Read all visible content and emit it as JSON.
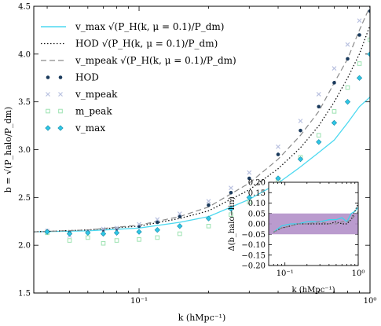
{
  "chart_data": [
    {
      "type": "line",
      "xlabel": "k (hMpc⁻¹)",
      "ylabel": "b = √(P_halo/P_dm)",
      "xscale": "log",
      "xlim": [
        0.035,
        1.0
      ],
      "ylim": [
        1.5,
        4.5
      ],
      "yticks": [
        "1.5",
        "2.0",
        "2.5",
        "3.0",
        "3.5",
        "4.0",
        "4.5"
      ],
      "xticks": [
        {
          "v": 0.1,
          "label": "10⁻¹"
        },
        {
          "v": 1.0,
          "label": "10⁰"
        }
      ],
      "legend": {
        "placement": "top-left",
        "entries": [
          {
            "label": "v_max √(P_H(k, μ = 0.1)/P_dm)",
            "style": "solid",
            "color": "#4dd9f0"
          },
          {
            "label": "HOD √(P_H(k, μ = 0.1)/P_dm)",
            "style": "dotted",
            "color": "#111111"
          },
          {
            "label": "v_mpeak √(P_H(k, μ = 0.1)/P_dm)",
            "style": "dashed",
            "color": "#8a8a8a"
          },
          {
            "label": "HOD",
            "style": "dot",
            "color": "#1a3a5c"
          },
          {
            "label": "v_mpeak",
            "style": "x",
            "color": "#b9c1e0"
          },
          {
            "label": "m_peak",
            "style": "square",
            "color": "#9be2b0"
          },
          {
            "label": "v_max",
            "style": "diamond",
            "color": "#2ec7e6"
          }
        ]
      },
      "series": [
        {
          "name": "v_max √(P_H(k, μ = 0.1)/P_dm)",
          "color": "#4dd9f0",
          "x": [
            0.035,
            0.06,
            0.1,
            0.15,
            0.2,
            0.3,
            0.4,
            0.5,
            0.6,
            0.7,
            0.8,
            0.9,
            1.0
          ],
          "y": [
            2.14,
            2.15,
            2.18,
            2.24,
            2.3,
            2.48,
            2.65,
            2.82,
            2.97,
            3.1,
            3.28,
            3.45,
            3.55
          ]
        },
        {
          "name": "HOD √(P_H(k, μ = 0.1)/P_dm)",
          "color": "#111111",
          "x": [
            0.035,
            0.06,
            0.1,
            0.15,
            0.2,
            0.3,
            0.4,
            0.5,
            0.6,
            0.7,
            0.8,
            0.9,
            1.0
          ],
          "y": [
            2.14,
            2.16,
            2.2,
            2.28,
            2.36,
            2.58,
            2.8,
            3.02,
            3.25,
            3.5,
            3.75,
            4.0,
            4.3
          ]
        },
        {
          "name": "v_mpeak √(P_H(k, μ = 0.1)/P_dm)",
          "color": "#8a8a8a",
          "x": [
            0.035,
            0.06,
            0.1,
            0.15,
            0.2,
            0.3,
            0.4,
            0.5,
            0.6,
            0.7,
            0.8,
            0.9,
            1.0
          ],
          "y": [
            2.14,
            2.16,
            2.21,
            2.3,
            2.4,
            2.65,
            2.9,
            3.15,
            3.4,
            3.7,
            3.95,
            4.25,
            4.5
          ]
        },
        {
          "name": "HOD",
          "color": "#1a3a5c",
          "x": [
            0.04,
            0.05,
            0.06,
            0.07,
            0.08,
            0.1,
            0.12,
            0.15,
            0.2,
            0.25,
            0.3,
            0.4,
            0.5,
            0.6,
            0.7,
            0.8,
            0.9,
            1.0
          ],
          "y": [
            2.15,
            2.13,
            2.14,
            2.16,
            2.17,
            2.2,
            2.24,
            2.3,
            2.42,
            2.55,
            2.7,
            2.95,
            3.2,
            3.45,
            3.7,
            3.95,
            4.2,
            4.45
          ]
        },
        {
          "name": "v_mpeak",
          "color": "#b9c1e0",
          "x": [
            0.04,
            0.05,
            0.06,
            0.07,
            0.08,
            0.1,
            0.12,
            0.15,
            0.2,
            0.25,
            0.3,
            0.4,
            0.5,
            0.6,
            0.7,
            0.8,
            0.9,
            1.0
          ],
          "y": [
            2.15,
            2.1,
            2.14,
            2.17,
            2.18,
            2.22,
            2.27,
            2.33,
            2.46,
            2.6,
            2.76,
            3.03,
            3.3,
            3.58,
            3.85,
            4.1,
            4.35,
            4.55
          ]
        },
        {
          "name": "m_peak",
          "color": "#9be2b0",
          "x": [
            0.04,
            0.05,
            0.06,
            0.07,
            0.08,
            0.1,
            0.12,
            0.15,
            0.2,
            0.25,
            0.3,
            0.4,
            0.5,
            0.6,
            0.7,
            0.8,
            0.9,
            1.0
          ],
          "y": [
            2.13,
            2.05,
            2.08,
            2.02,
            2.05,
            2.06,
            2.08,
            2.12,
            2.2,
            2.32,
            2.45,
            2.68,
            2.92,
            3.15,
            3.4,
            3.65,
            3.9,
            4.15
          ]
        },
        {
          "name": "v_max",
          "color": "#2ec7e6",
          "x": [
            0.04,
            0.05,
            0.06,
            0.07,
            0.08,
            0.1,
            0.12,
            0.15,
            0.2,
            0.25,
            0.3,
            0.4,
            0.5,
            0.6,
            0.7,
            0.8,
            0.9,
            1.0
          ],
          "y": [
            2.14,
            2.12,
            2.13,
            2.12,
            2.13,
            2.14,
            2.16,
            2.2,
            2.28,
            2.38,
            2.5,
            2.7,
            2.9,
            3.08,
            3.28,
            3.5,
            3.75,
            4.0
          ]
        }
      ]
    },
    {
      "type": "line",
      "xlabel": "k (hMpc⁻¹)",
      "ylabel": "Δ(b_halo−lin)",
      "xscale": "log",
      "xlim": [
        0.06,
        1.0
      ],
      "ylim": [
        -0.2,
        0.2
      ],
      "yticks": [
        "−0.20",
        "−0.15",
        "−0.10",
        "−0.05",
        "0.00",
        "0.05",
        "0.10",
        "0.15",
        "0.20"
      ],
      "xticks": [
        {
          "v": 0.1,
          "label": "10⁻¹"
        },
        {
          "v": 1.0,
          "label": "10⁰"
        }
      ],
      "band": {
        "y0": -0.05,
        "y1": 0.05,
        "color": "#b390c9"
      },
      "series": [
        {
          "name": "v_max",
          "color": "#3dd4ec",
          "x": [
            0.07,
            0.09,
            0.12,
            0.15,
            0.2,
            0.3,
            0.4,
            0.5,
            0.6,
            0.7,
            0.8,
            0.9,
            1.0
          ],
          "y": [
            -0.04,
            -0.01,
            0.0,
            0.0,
            0.01,
            0.01,
            0.02,
            0.02,
            0.03,
            0.01,
            0.05,
            0.06,
            0.08
          ]
        },
        {
          "name": "HOD",
          "color": "#111111",
          "x": [
            0.07,
            0.09,
            0.12,
            0.15,
            0.2,
            0.3,
            0.4,
            0.5,
            0.6,
            0.7,
            0.8,
            0.9,
            1.0
          ],
          "y": [
            -0.04,
            -0.02,
            -0.01,
            0.0,
            0.0,
            0.0,
            0.0,
            0.01,
            0.0,
            0.0,
            0.02,
            0.06,
            0.1
          ]
        },
        {
          "name": "v_mpeak",
          "color": "#888888",
          "x": [
            0.07,
            0.09,
            0.12,
            0.15,
            0.2,
            0.3,
            0.4,
            0.5,
            0.6,
            0.7,
            0.8,
            0.9,
            1.0
          ],
          "y": [
            -0.04,
            -0.02,
            -0.01,
            0.0,
            0.0,
            0.01,
            0.0,
            0.0,
            0.01,
            0.01,
            0.02,
            0.04,
            0.06
          ]
        }
      ]
    }
  ]
}
